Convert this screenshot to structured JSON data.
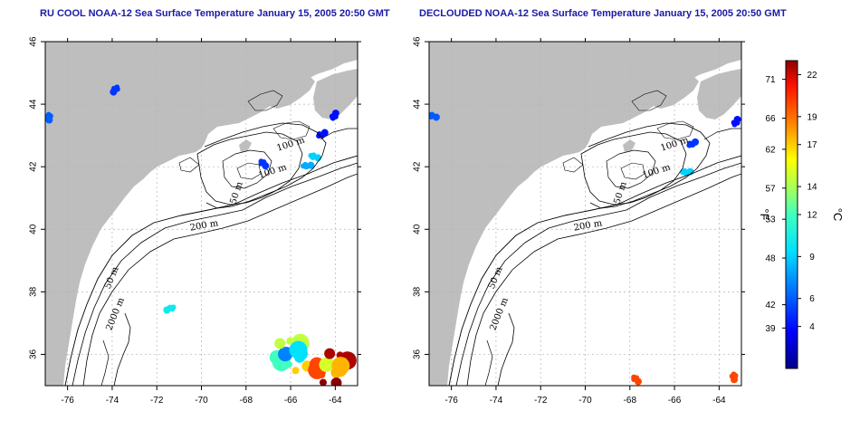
{
  "panels": [
    {
      "id": "left",
      "title": "RU COOL NOAA-12 Sea Surface Temperature January 15, 2005 20:50 GMT",
      "contour_labels": [
        "100 m",
        "100 m",
        "50 m",
        "200 m",
        "50 m",
        "2000 m"
      ],
      "sst_patches": [
        {
          "lon": -64.0,
          "lat": 43.6,
          "temp_c": 4
        },
        {
          "lon": -64.6,
          "lat": 43.0,
          "temp_c": 4
        },
        {
          "lon": -65.3,
          "lat": 42.0,
          "temp_c": 8
        },
        {
          "lon": -65.0,
          "lat": 42.3,
          "temp_c": 9
        },
        {
          "lon": -67.3,
          "lat": 42.1,
          "temp_c": 5
        },
        {
          "lon": -76.9,
          "lat": 43.6,
          "temp_c": 6
        },
        {
          "lon": -73.9,
          "lat": 44.5,
          "temp_c": 5
        },
        {
          "lon": -71.4,
          "lat": 37.5,
          "temp_c": 10
        },
        {
          "lon": -66.0,
          "lat": 36.0,
          "temp_c": 12
        },
        {
          "lon": -64.2,
          "lat": 35.6,
          "temp_c": 20
        }
      ]
    },
    {
      "id": "right",
      "title": "DECLOUDED NOAA-12 Sea Surface Temperature January 15, 2005 20:50 GMT",
      "contour_labels": [
        "100 m",
        "100 m",
        "50 m",
        "200 m",
        "50 m",
        "2000 m"
      ],
      "sst_patches": [
        {
          "lon": -63.2,
          "lat": 43.4,
          "temp_c": 4
        },
        {
          "lon": -65.2,
          "lat": 42.7,
          "temp_c": 5
        },
        {
          "lon": -65.5,
          "lat": 41.8,
          "temp_c": 9
        },
        {
          "lon": -76.9,
          "lat": 43.6,
          "temp_c": 6
        },
        {
          "lon": -67.8,
          "lat": 35.2,
          "temp_c": 20
        },
        {
          "lon": -63.4,
          "lat": 35.3,
          "temp_c": 20
        }
      ]
    }
  ],
  "axes": {
    "x_ticks": [
      "-76",
      "-74",
      "-72",
      "-70",
      "-68",
      "-66",
      "-64"
    ],
    "y_ticks": [
      "36",
      "38",
      "40",
      "42",
      "44",
      "46"
    ],
    "xlim": [
      -77,
      -63
    ],
    "ylim": [
      35,
      46
    ]
  },
  "colorbar": {
    "fahrenheit_ticks": [
      "71",
      "66",
      "62",
      "57",
      "53",
      "48",
      "42",
      "39"
    ],
    "celsius_ticks": [
      "22",
      "19",
      "17",
      "14",
      "12",
      "9",
      "6",
      "4"
    ],
    "fahrenheit_unit": "°F",
    "celsius_unit": "°C",
    "range_c": [
      1,
      23
    ]
  },
  "colors": {
    "land": "#bebebe",
    "ocean": "#ffffff",
    "title": "#1a1aa6",
    "grid": "#b4b4b4"
  }
}
